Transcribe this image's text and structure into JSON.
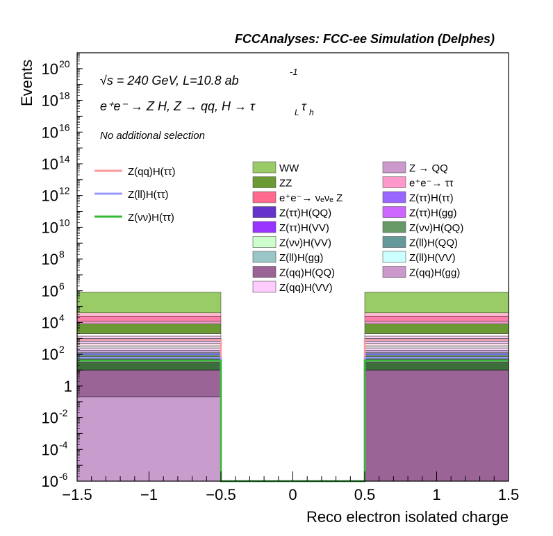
{
  "header_title": "FCCAnalyses: FCC-ee Simulation (Delphes)",
  "annotations": {
    "energy": "√s = 240 GeV, L=10.8 ab",
    "energy_exp": "-1",
    "process": "e⁺e⁻ → Z H, Z → qq, H → τ",
    "process_sub1": "L",
    "process_tau2": "τ",
    "process_sub2": "h",
    "selection": "No additional selection"
  },
  "chart_data": {
    "type": "bar",
    "stacked": true,
    "log_y": true,
    "xlabel": "Reco electron isolated charge",
    "ylabel": "Events",
    "xlim": [
      -1.5,
      1.5
    ],
    "ylim": [
      1e-06,
      1e+21
    ],
    "x_ticks": [
      "−1.5",
      "−1",
      "−0.5",
      "0",
      "0.5",
      "1",
      "1.5"
    ],
    "y_ticks": [
      {
        "base": "10",
        "exp": "-6"
      },
      {
        "base": "10",
        "exp": "-4"
      },
      {
        "base": "10",
        "exp": "-2"
      },
      {
        "base": "1",
        "exp": ""
      },
      {
        "base": "10",
        "exp": "2"
      },
      {
        "base": "10",
        "exp": "4"
      },
      {
        "base": "10",
        "exp": "6"
      },
      {
        "base": "10",
        "exp": "8"
      },
      {
        "base": "10",
        "exp": "10"
      },
      {
        "base": "10",
        "exp": "12"
      },
      {
        "base": "10",
        "exp": "14"
      },
      {
        "base": "10",
        "exp": "16"
      },
      {
        "base": "10",
        "exp": "18"
      },
      {
        "base": "10",
        "exp": "20"
      }
    ],
    "bins": [
      {
        "x_low": -1.5,
        "x_high": -0.5
      },
      {
        "x_low": -0.5,
        "x_high": 0.5
      },
      {
        "x_low": 0.5,
        "x_high": 1.5
      }
    ],
    "stack_bins": [
      [
        {
          "top": 0.2,
          "color": "#c89ccd"
        },
        {
          "top": 10,
          "color": "#9a6496"
        },
        {
          "top": 30,
          "color": "#3b6e3b"
        },
        {
          "top": 50,
          "color": "#8c8c8c"
        },
        {
          "top": 70,
          "color": "#2e8b57"
        },
        {
          "top": 90,
          "color": "#8fbc8f"
        },
        {
          "top": 110,
          "color": "#6a6aff"
        },
        {
          "top": 130,
          "color": "#e6e6fa"
        },
        {
          "top": 180,
          "color": "#c8a8d8"
        },
        {
          "top": 250,
          "color": "#f7d9f5"
        },
        {
          "top": 340,
          "color": "#e3e3e3"
        },
        {
          "top": 470,
          "color": "#ffe4f0"
        },
        {
          "top": 640,
          "color": "#f2ccf0"
        },
        {
          "top": 1000,
          "color": "#b1b1ee"
        },
        {
          "top": 1400,
          "color": "#ffd6f0"
        },
        {
          "top": 2000,
          "color": "#ffffff"
        },
        {
          "top": 8000,
          "color": "#6b9a34"
        },
        {
          "top": 12000,
          "color": "#e8a0c8"
        },
        {
          "top": 25000,
          "color": "#ff7fa8"
        },
        {
          "top": 40000,
          "color": "#ffb6d0"
        },
        {
          "top": 800000,
          "color": "#99cc66"
        }
      ],
      [],
      [
        {
          "top": 10,
          "color": "#9a6496"
        },
        {
          "top": 30,
          "color": "#3b6e3b"
        },
        {
          "top": 50,
          "color": "#8c8c8c"
        },
        {
          "top": 70,
          "color": "#2e8b57"
        },
        {
          "top": 90,
          "color": "#8fbc8f"
        },
        {
          "top": 110,
          "color": "#6a6aff"
        },
        {
          "top": 130,
          "color": "#e6e6fa"
        },
        {
          "top": 180,
          "color": "#c8a8d8"
        },
        {
          "top": 250,
          "color": "#f7d9f5"
        },
        {
          "top": 340,
          "color": "#e3e3e3"
        },
        {
          "top": 470,
          "color": "#ffe4f0"
        },
        {
          "top": 640,
          "color": "#f2ccf0"
        },
        {
          "top": 1000,
          "color": "#b1b1ee"
        },
        {
          "top": 1400,
          "color": "#ffd6f0"
        },
        {
          "top": 2000,
          "color": "#ffffff"
        },
        {
          "top": 8000,
          "color": "#6b9a34"
        },
        {
          "top": 12000,
          "color": "#e8a0c8"
        },
        {
          "top": 25000,
          "color": "#ff7fa8"
        },
        {
          "top": 40000,
          "color": "#ffb6d0"
        },
        {
          "top": 800000,
          "color": "#99cc66"
        }
      ]
    ],
    "signal_lines": [
      {
        "name": "Z(qq)H(ττ)",
        "color": "#ff9999",
        "values": [
          800,
          1e-06,
          800
        ]
      },
      {
        "name": "Z(ll)H(ττ)",
        "color": "#9999ff",
        "values": [
          60,
          1e-06,
          60
        ]
      },
      {
        "name": "Z(νν)H(ττ)",
        "color": "#33bb33",
        "values": [
          40,
          1e-06,
          40
        ]
      }
    ],
    "legend_backgrounds": [
      {
        "name": "WW",
        "color": "#99cc66"
      },
      {
        "name": "ZZ",
        "color": "#6b9a34"
      },
      {
        "name": "e⁺e⁻→ νₑνₑ Z",
        "color": "#ff6a8e"
      },
      {
        "name": "Z(ττ)H(QQ)",
        "color": "#6633cc"
      },
      {
        "name": "Z(ττ)H(VV)",
        "color": "#9933ff"
      },
      {
        "name": "Z(νν)H(VV)",
        "color": "#ccffcc"
      },
      {
        "name": "Z(ll)H(gg)",
        "color": "#99c6c6"
      },
      {
        "name": "Z(qq)H(QQ)",
        "color": "#9a6496"
      },
      {
        "name": "Z(qq)H(VV)",
        "color": "#ffccff"
      },
      {
        "name": "Z → QQ",
        "color": "#cc99cc"
      },
      {
        "name": "e⁺e⁻→ ττ",
        "color": "#ff99cc"
      },
      {
        "name": "Z(ττ)H(ττ)",
        "color": "#9966ff"
      },
      {
        "name": "Z(ττ)H(gg)",
        "color": "#cc66ff"
      },
      {
        "name": "Z(νν)H(QQ)",
        "color": "#669966"
      },
      {
        "name": "Z(ll)H(QQ)",
        "color": "#669999"
      },
      {
        "name": "Z(ll)H(VV)",
        "color": "#ccffff"
      },
      {
        "name": "Z(qq)H(gg)",
        "color": "#cc99cc"
      }
    ]
  }
}
